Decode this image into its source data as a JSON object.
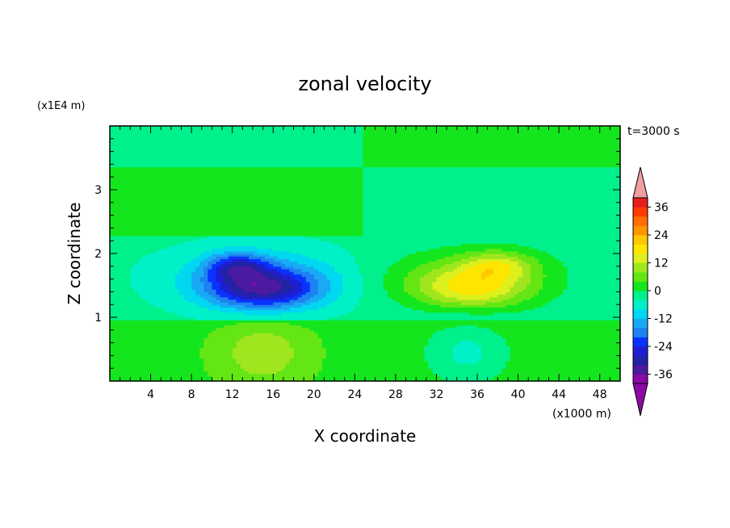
{
  "chart_data": {
    "type": "contour",
    "title": "zonal velocity",
    "xlabel": "X coordinate",
    "ylabel": "Z coordinate",
    "x_unit": "(x1000 m)",
    "y_unit": "(x1E4 m)",
    "time_label": "t=3000 s",
    "xlim": [
      0,
      50
    ],
    "ylim": [
      0,
      4
    ],
    "x_ticks": [
      4,
      8,
      12,
      16,
      20,
      24,
      28,
      32,
      36,
      40,
      44,
      48
    ],
    "y_ticks": [
      1,
      2,
      3
    ],
    "colorbar": {
      "levels": [
        -40,
        -36,
        -32,
        -28,
        -24,
        -20,
        -16,
        -12,
        -8,
        -4,
        0,
        4,
        8,
        12,
        16,
        20,
        24,
        28,
        32,
        36,
        40
      ],
      "colors": [
        "#8b0aa5",
        "#4b1aa0",
        "#2222a6",
        "#1e1ed2",
        "#0a32ff",
        "#1e82f0",
        "#19aaf5",
        "#00d7f0",
        "#00f0c8",
        "#00f08c",
        "#14e61e",
        "#64e614",
        "#a0e61e",
        "#dcf01e",
        "#ffe600",
        "#ffc800",
        "#ff9600",
        "#ff6e00",
        "#ff3c00",
        "#e61e1e",
        "#f0a0a0"
      ],
      "tick_labels": [
        "36",
        "24",
        "12",
        "0",
        "-12",
        "-24",
        "-36"
      ],
      "tick_values": [
        36,
        24,
        12,
        0,
        -12,
        -24,
        -36
      ]
    },
    "features": [
      {
        "name": "negative core (left)",
        "x": 15,
        "z": 1.4,
        "min_value": -28
      },
      {
        "name": "negative secondary (left)",
        "x": 12,
        "z": 1.85,
        "min_value": -20
      },
      {
        "name": "positive core (right)",
        "x": 35,
        "z": 1.4,
        "max_value": 16
      },
      {
        "name": "positive secondary (right)",
        "x": 38,
        "z": 1.85,
        "max_value": 12
      },
      {
        "name": "positive lower lobe (left)",
        "x": 15,
        "z": 0.4,
        "max_value": 8
      },
      {
        "name": "negative lower lobe (right)",
        "x": 35,
        "z": 0.4,
        "min_value": -8
      }
    ],
    "grid": false,
    "legend": "colorbar-right"
  }
}
